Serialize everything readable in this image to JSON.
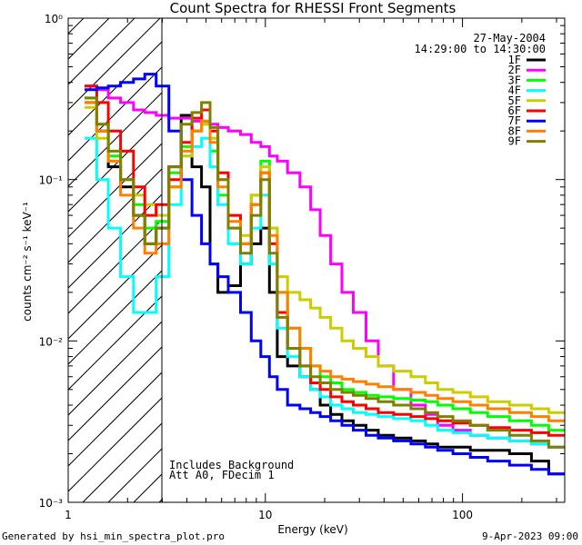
{
  "chart_data": {
    "type": "line",
    "title": "Count Spectra for RHESSI Front Segments",
    "xlabel": "Energy (keV)",
    "ylabel": "counts cm⁻² s⁻¹ keV⁻¹",
    "xscale": "log",
    "yscale": "log",
    "xlim": [
      1,
      330
    ],
    "ylim": [
      0.001,
      1
    ],
    "x_ticks": [
      {
        "value": 1,
        "label": "1"
      },
      {
        "value": 10,
        "label": "10"
      },
      {
        "value": 100,
        "label": "100"
      }
    ],
    "y_ticks": [
      {
        "value": 1,
        "label": "10⁰"
      },
      {
        "value": 0.1,
        "label": "10⁻¹"
      },
      {
        "value": 0.01,
        "label": "10⁻²"
      },
      {
        "value": 0.001,
        "label": "10⁻³"
      }
    ],
    "hatched_region": {
      "x_range": [
        1,
        3
      ],
      "description": "attenuated low-energy region"
    },
    "date": "27-May-2004",
    "time_range": "14:29:00 to 14:30:00",
    "annotations": [
      "Includes Background",
      "Att A0, FDecim 1"
    ],
    "footer_left": "Generated by hsi_min_spectra_plot.pro",
    "footer_right": "9-Apr-2023 09:00",
    "energy_bins": [
      1.3,
      1.5,
      1.7,
      2,
      2.3,
      2.6,
      3,
      3.5,
      4,
      4.5,
      5,
      5.5,
      6,
      7,
      8,
      9,
      10,
      11,
      12,
      14,
      16,
      18,
      20,
      23,
      26,
      30,
      35,
      40,
      50,
      60,
      70,
      80,
      100,
      120,
      150,
      200,
      250,
      300
    ],
    "series": [
      {
        "name": "1F",
        "color": "#000000",
        "values": [
          0.3,
          0.2,
          0.12,
          0.09,
          0.06,
          0.04,
          0.05,
          0.12,
          0.25,
          0.12,
          0.09,
          0.03,
          0.02,
          0.022,
          0.03,
          0.04,
          0.05,
          0.02,
          0.008,
          0.007,
          0.006,
          0.005,
          0.004,
          0.0035,
          0.0032,
          0.003,
          0.0028,
          0.0026,
          0.0025,
          0.0024,
          0.0023,
          0.0022,
          0.0022,
          0.0021,
          0.0021,
          0.002,
          0.0018,
          0.0015
        ]
      },
      {
        "name": "2F",
        "color": "#ff00ff",
        "values": [
          0.38,
          0.36,
          0.32,
          0.3,
          0.27,
          0.26,
          0.25,
          0.24,
          0.24,
          0.23,
          0.23,
          0.22,
          0.21,
          0.2,
          0.19,
          0.17,
          0.16,
          0.14,
          0.13,
          0.11,
          0.09,
          0.065,
          0.045,
          0.03,
          0.02,
          0.015,
          0.01,
          0.007,
          0.005,
          0.004,
          0.0035,
          0.003,
          0.0028,
          0.0026,
          0.0025,
          0.0024,
          0.0023,
          0.0022
        ]
      },
      {
        "name": "3F",
        "color": "#00ff00",
        "values": [
          0.32,
          0.22,
          0.14,
          0.1,
          0.07,
          0.05,
          0.055,
          0.11,
          0.16,
          0.2,
          0.22,
          0.15,
          0.08,
          0.05,
          0.04,
          0.08,
          0.13,
          0.05,
          0.02,
          0.012,
          0.009,
          0.007,
          0.006,
          0.0055,
          0.005,
          0.0048,
          0.0046,
          0.0045,
          0.0044,
          0.0043,
          0.0042,
          0.004,
          0.0038,
          0.0036,
          0.0034,
          0.0032,
          0.003,
          0.0028
        ]
      },
      {
        "name": "4F",
        "color": "#00ffff",
        "values": [
          0.18,
          0.1,
          0.05,
          0.025,
          0.015,
          0.015,
          0.025,
          0.07,
          0.14,
          0.16,
          0.18,
          0.12,
          0.07,
          0.04,
          0.03,
          0.05,
          0.08,
          0.03,
          0.012,
          0.008,
          0.006,
          0.005,
          0.0045,
          0.004,
          0.0038,
          0.0036,
          0.0035,
          0.0034,
          0.0033,
          0.0032,
          0.003,
          0.0028,
          0.0027,
          0.0026,
          0.0025,
          0.0024,
          0.0023,
          0.0022
        ]
      },
      {
        "name": "5F",
        "color": "#cccc00",
        "values": [
          0.28,
          0.18,
          0.13,
          0.1,
          0.08,
          0.07,
          0.06,
          0.09,
          0.14,
          0.2,
          0.22,
          0.18,
          0.1,
          0.06,
          0.045,
          0.08,
          0.12,
          0.05,
          0.025,
          0.02,
          0.018,
          0.016,
          0.014,
          0.012,
          0.01,
          0.009,
          0.008,
          0.007,
          0.0065,
          0.006,
          0.0055,
          0.005,
          0.0048,
          0.0045,
          0.0042,
          0.004,
          0.0038,
          0.0036
        ]
      },
      {
        "name": "6F",
        "color": "#ff0000",
        "values": [
          0.38,
          0.3,
          0.2,
          0.15,
          0.09,
          0.06,
          0.07,
          0.1,
          0.17,
          0.24,
          0.27,
          0.2,
          0.11,
          0.06,
          0.04,
          0.07,
          0.11,
          0.04,
          0.015,
          0.009,
          0.007,
          0.0055,
          0.005,
          0.0045,
          0.0042,
          0.004,
          0.0038,
          0.0036,
          0.0035,
          0.0034,
          0.0033,
          0.0032,
          0.0031,
          0.003,
          0.0029,
          0.0028,
          0.0027,
          0.0026
        ]
      },
      {
        "name": "7F",
        "color": "#0000ff",
        "values": [
          0.36,
          0.37,
          0.38,
          0.4,
          0.42,
          0.45,
          0.38,
          0.2,
          0.1,
          0.06,
          0.04,
          0.03,
          0.025,
          0.02,
          0.015,
          0.01,
          0.008,
          0.006,
          0.005,
          0.004,
          0.0038,
          0.0036,
          0.0034,
          0.0032,
          0.003,
          0.0028,
          0.0026,
          0.0025,
          0.0024,
          0.0023,
          0.0022,
          0.0021,
          0.002,
          0.0019,
          0.0018,
          0.0017,
          0.0016,
          0.0015
        ]
      },
      {
        "name": "8F",
        "color": "#ff8000",
        "values": [
          0.3,
          0.2,
          0.13,
          0.08,
          0.05,
          0.035,
          0.04,
          0.09,
          0.15,
          0.2,
          0.23,
          0.17,
          0.09,
          0.055,
          0.04,
          0.07,
          0.11,
          0.045,
          0.02,
          0.012,
          0.009,
          0.007,
          0.0065,
          0.006,
          0.0058,
          0.0056,
          0.0054,
          0.0052,
          0.005,
          0.0048,
          0.0046,
          0.0044,
          0.0042,
          0.004,
          0.0038,
          0.0036,
          0.0034,
          0.0032
        ]
      },
      {
        "name": "9F",
        "color": "#808000",
        "values": [
          0.32,
          0.22,
          0.15,
          0.1,
          0.06,
          0.04,
          0.05,
          0.12,
          0.22,
          0.26,
          0.3,
          0.21,
          0.1,
          0.05,
          0.035,
          0.06,
          0.1,
          0.035,
          0.014,
          0.009,
          0.007,
          0.006,
          0.0055,
          0.005,
          0.0048,
          0.0046,
          0.0044,
          0.0042,
          0.004,
          0.0038,
          0.0036,
          0.0034,
          0.0032,
          0.003,
          0.0028,
          0.0026,
          0.0024,
          0.0022
        ]
      }
    ]
  }
}
